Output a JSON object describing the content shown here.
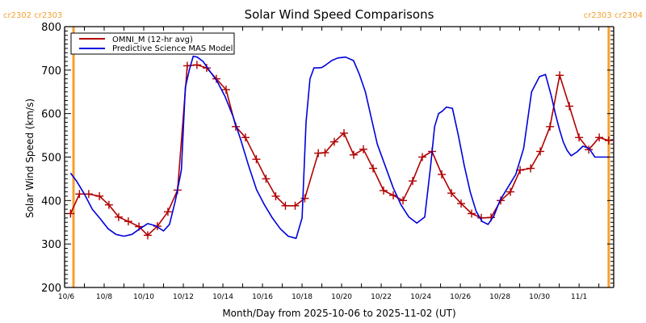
{
  "chart_data": {
    "type": "line",
    "title": "Solar Wind Speed Comparisons",
    "xlabel": "Month/Day from 2025-10-06 to 2025-11-02 (UT)",
    "ylabel": "Solar Wind Speed (km/s)",
    "ylim": [
      200,
      800
    ],
    "xlim_days_from_start": [
      0,
      27.75
    ],
    "start_date": "2025-10-06",
    "yticks": [
      200,
      300,
      400,
      500,
      600,
      700,
      800
    ],
    "xticks": [
      {
        "day": 0,
        "label": "10/6"
      },
      {
        "day": 2,
        "label": "10/8"
      },
      {
        "day": 4,
        "label": "10/10"
      },
      {
        "day": 6,
        "label": "10/12"
      },
      {
        "day": 8,
        "label": "10/14"
      },
      {
        "day": 10,
        "label": "10/16"
      },
      {
        "day": 12,
        "label": "10/18"
      },
      {
        "day": 14,
        "label": "10/20"
      },
      {
        "day": 16,
        "label": "10/22"
      },
      {
        "day": 18,
        "label": "10/24"
      },
      {
        "day": 20,
        "label": "10/26"
      },
      {
        "day": 22,
        "label": "10/28"
      },
      {
        "day": 24,
        "label": "10/30"
      },
      {
        "day": 26,
        "label": "11/1"
      }
    ],
    "carrington_markers": [
      {
        "day": 0.45,
        "label": "cr2302 cr2303",
        "side": "left"
      },
      {
        "day": 27.5,
        "label": "cr2303 cr2304",
        "side": "right"
      }
    ],
    "legend": {
      "placement": "top-left",
      "entries": [
        "OMNI_M (12-hr avg)",
        "Predictive Science MAS Model"
      ]
    },
    "colors": {
      "omni": "#b00000",
      "model": "#0000dd",
      "carrington": "#f5a030",
      "axis": "#000000"
    },
    "series": [
      {
        "name": "OMNI_M (12-hr avg)",
        "markers": true,
        "x": [
          0.3,
          0.75,
          1.22,
          1.76,
          2.24,
          2.73,
          3.22,
          3.76,
          4.2,
          4.69,
          5.22,
          5.71,
          6.2,
          6.69,
          7.18,
          7.67,
          8.16,
          8.65,
          9.14,
          9.69,
          10.18,
          10.67,
          11.16,
          11.65,
          12.14,
          12.82,
          13.16,
          13.63,
          14.12,
          14.61,
          15.1,
          15.59,
          16.12,
          16.61,
          17.1,
          17.59,
          18.08,
          18.57,
          19.06,
          19.55,
          20.04,
          20.57,
          21.06,
          21.55,
          22.04,
          22.53,
          23.02,
          23.55,
          24.04,
          24.53,
          25.02,
          25.51,
          26.0,
          26.49,
          27.02,
          27.5
        ],
        "values": [
          370,
          415,
          415,
          410,
          390,
          362,
          352,
          340,
          320,
          341,
          374,
          424,
          710,
          712,
          705,
          680,
          655,
          570,
          545,
          495,
          450,
          410,
          388,
          388,
          405,
          509,
          510,
          535,
          555,
          505,
          518,
          474,
          423,
          412,
          400,
          445,
          500,
          513,
          460,
          417,
          393,
          370,
          360,
          361,
          400,
          420,
          470,
          474,
          513,
          570,
          688,
          617,
          545,
          517,
          545,
          538
        ]
      },
      {
        "name": "Predictive Science MAS Model",
        "markers": false,
        "x": [
          0.3,
          0.6,
          1.0,
          1.4,
          1.8,
          2.2,
          2.6,
          3.0,
          3.4,
          3.8,
          4.2,
          4.6,
          5.0,
          5.3,
          5.6,
          5.9,
          6.1,
          6.3,
          6.5,
          6.7,
          7.0,
          7.3,
          7.7,
          8.1,
          8.5,
          8.9,
          9.3,
          9.7,
          10.1,
          10.5,
          10.9,
          11.3,
          11.7,
          12.0,
          12.2,
          12.4,
          12.6,
          12.8,
          13.0,
          13.2,
          13.5,
          13.8,
          14.2,
          14.6,
          14.9,
          15.2,
          15.5,
          15.8,
          16.2,
          16.6,
          17.0,
          17.4,
          17.8,
          18.2,
          18.5,
          18.7,
          18.9,
          19.1,
          19.3,
          19.6,
          19.9,
          20.2,
          20.5,
          20.8,
          21.1,
          21.4,
          21.7,
          22.0,
          22.4,
          22.8,
          23.2,
          23.6,
          24.0,
          24.3,
          24.6,
          24.8,
          25.0,
          25.2,
          25.4,
          25.6,
          25.9,
          26.2,
          26.5,
          26.8,
          27.0,
          27.2,
          27.5
        ],
        "values": [
          463,
          445,
          415,
          380,
          358,
          335,
          322,
          318,
          322,
          335,
          347,
          342,
          330,
          345,
          400,
          470,
          660,
          700,
          732,
          730,
          720,
          700,
          675,
          640,
          595,
          540,
          480,
          425,
          390,
          360,
          335,
          318,
          313,
          360,
          580,
          680,
          705,
          705,
          706,
          712,
          722,
          728,
          730,
          722,
          690,
          650,
          590,
          530,
          480,
          430,
          390,
          362,
          348,
          362,
          480,
          570,
          600,
          606,
          615,
          612,
          550,
          480,
          420,
          375,
          352,
          345,
          365,
          400,
          430,
          460,
          520,
          650,
          685,
          690,
          640,
          600,
          565,
          535,
          515,
          503,
          512,
          525,
          520,
          500,
          500,
          500,
          500
        ]
      }
    ]
  }
}
